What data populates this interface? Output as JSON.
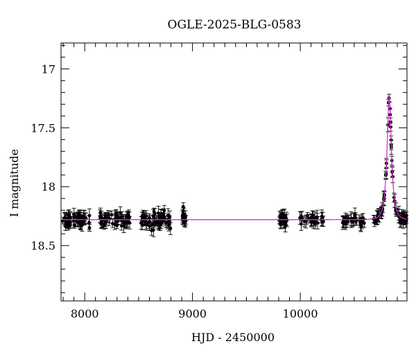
{
  "chart_data": {
    "type": "scatter",
    "title": "OGLE-2025-BLG-0583",
    "xlabel": "HJD - 2450000",
    "ylabel": "I magnitude",
    "xlim": [
      7780,
      10990
    ],
    "ylim": [
      18.97,
      16.78
    ],
    "y_inverted": true,
    "x_ticks": [
      8000,
      9000,
      10000
    ],
    "y_ticks": [
      17,
      17.5,
      18,
      18.5
    ],
    "grid": false,
    "legend": "none",
    "colors": {
      "data": "#000000",
      "model": "#cc33cc"
    },
    "baseline_mag": 18.28,
    "observation_segments": [
      {
        "x_start": 7790,
        "x_end": 8050,
        "mean_mag": 18.28,
        "scatter": 0.05,
        "count": 55
      },
      {
        "x_start": 8140,
        "x_end": 8420,
        "mean_mag": 18.28,
        "scatter": 0.05,
        "count": 55
      },
      {
        "x_start": 8520,
        "x_end": 8800,
        "mean_mag": 18.29,
        "scatter": 0.06,
        "count": 60
      },
      {
        "x_start": 8890,
        "x_end": 8940,
        "mean_mag": 18.25,
        "scatter": 0.06,
        "count": 14
      },
      {
        "x_start": 9800,
        "x_end": 9880,
        "mean_mag": 18.29,
        "scatter": 0.06,
        "count": 22
      },
      {
        "x_start": 9990,
        "x_end": 10220,
        "mean_mag": 18.28,
        "scatter": 0.04,
        "count": 30
      },
      {
        "x_start": 10380,
        "x_end": 10620,
        "mean_mag": 18.29,
        "scatter": 0.04,
        "count": 30
      },
      {
        "x_start": 10680,
        "x_end": 10990,
        "mean_mag": null,
        "scatter": 0.03,
        "count": 70
      }
    ],
    "model": {
      "t0": 10825,
      "peak_mag": 17.23,
      "baseline_mag": 18.28,
      "tE": 38
    }
  }
}
